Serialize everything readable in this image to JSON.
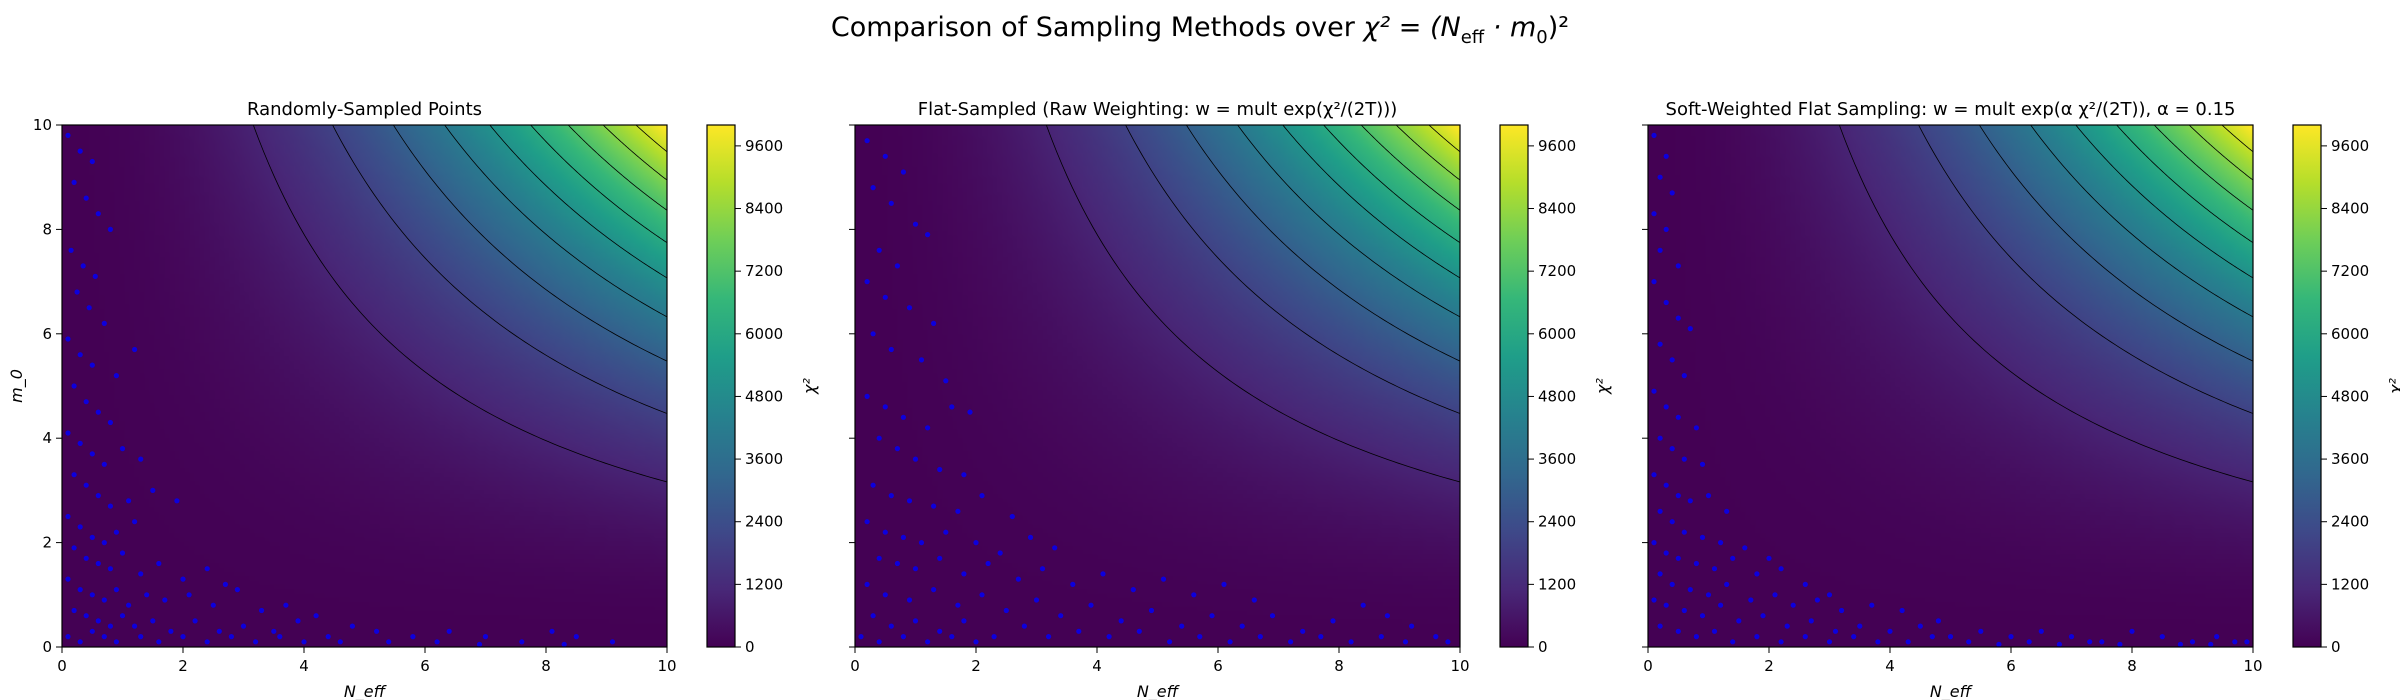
{
  "suptitle": {
    "pre": "Comparison of Sampling Methods over ",
    "formula": "χ² = (N",
    "sub": "eff",
    "post": " · m",
    "sub2": "0",
    "end": ")²"
  },
  "colorbar_stops": [
    "#440154",
    "#482878",
    "#3e4989",
    "#31688e",
    "#26828e",
    "#1f9e89",
    "#35b779",
    "#6ece58",
    "#b5de2b",
    "#fde725"
  ],
  "chart_data": [
    {
      "type": "scatter",
      "title": "Randomly-Sampled Points",
      "xlabel": "N_eff",
      "ylabel": "m_0",
      "colorbar_label": "χ²",
      "xlim": [
        0,
        10
      ],
      "ylim": [
        0,
        10
      ],
      "xticks": [
        "0",
        "2",
        "4",
        "6",
        "8",
        "10"
      ],
      "yticks": [
        "0",
        "2",
        "4",
        "6",
        "8",
        "10"
      ],
      "cbar_range": [
        0,
        10000
      ],
      "cbar_ticks": [
        "0",
        "1200",
        "2400",
        "3600",
        "4800",
        "6000",
        "7200",
        "8400",
        "9600"
      ],
      "contour_levels": [
        1000,
        2000,
        3000,
        4000,
        5000,
        6000,
        7000,
        8000,
        9000
      ],
      "point_color": "#0000ff",
      "points": [
        [
          0.1,
          9.8
        ],
        [
          0.3,
          9.5
        ],
        [
          0.5,
          9.3
        ],
        [
          0.2,
          8.9
        ],
        [
          0.4,
          8.6
        ],
        [
          0.6,
          8.3
        ],
        [
          0.8,
          8.0
        ],
        [
          0.15,
          7.6
        ],
        [
          0.35,
          7.3
        ],
        [
          0.55,
          7.1
        ],
        [
          0.25,
          6.8
        ],
        [
          0.45,
          6.5
        ],
        [
          0.7,
          6.2
        ],
        [
          0.1,
          5.9
        ],
        [
          0.3,
          5.6
        ],
        [
          0.5,
          5.4
        ],
        [
          0.9,
          5.2
        ],
        [
          1.2,
          5.7
        ],
        [
          0.2,
          5.0
        ],
        [
          0.4,
          4.7
        ],
        [
          0.6,
          4.5
        ],
        [
          0.8,
          4.3
        ],
        [
          0.1,
          4.1
        ],
        [
          0.3,
          3.9
        ],
        [
          0.5,
          3.7
        ],
        [
          0.7,
          3.5
        ],
        [
          1.0,
          3.8
        ],
        [
          1.3,
          3.6
        ],
        [
          0.2,
          3.3
        ],
        [
          0.4,
          3.1
        ],
        [
          0.6,
          2.9
        ],
        [
          0.8,
          2.7
        ],
        [
          1.1,
          2.8
        ],
        [
          1.5,
          3.0
        ],
        [
          0.1,
          2.5
        ],
        [
          0.3,
          2.3
        ],
        [
          0.5,
          2.1
        ],
        [
          0.7,
          2.0
        ],
        [
          0.9,
          2.2
        ],
        [
          1.2,
          2.4
        ],
        [
          1.9,
          2.8
        ],
        [
          0.2,
          1.9
        ],
        [
          0.4,
          1.7
        ],
        [
          0.6,
          1.6
        ],
        [
          0.8,
          1.5
        ],
        [
          1.0,
          1.8
        ],
        [
          1.3,
          1.4
        ],
        [
          1.6,
          1.6
        ],
        [
          2.0,
          1.3
        ],
        [
          2.4,
          1.5
        ],
        [
          2.7,
          1.2
        ],
        [
          0.1,
          1.3
        ],
        [
          0.3,
          1.1
        ],
        [
          0.5,
          1.0
        ],
        [
          0.7,
          0.9
        ],
        [
          0.9,
          1.1
        ],
        [
          1.1,
          0.8
        ],
        [
          1.4,
          1.0
        ],
        [
          1.7,
          0.9
        ],
        [
          2.1,
          1.0
        ],
        [
          2.5,
          0.8
        ],
        [
          2.9,
          1.1
        ],
        [
          3.3,
          0.7
        ],
        [
          3.7,
          0.8
        ],
        [
          4.2,
          0.6
        ],
        [
          0.2,
          0.7
        ],
        [
          0.4,
          0.6
        ],
        [
          0.6,
          0.5
        ],
        [
          0.8,
          0.4
        ],
        [
          1.0,
          0.6
        ],
        [
          1.2,
          0.4
        ],
        [
          1.5,
          0.5
        ],
        [
          1.8,
          0.3
        ],
        [
          2.2,
          0.5
        ],
        [
          2.6,
          0.3
        ],
        [
          3.0,
          0.4
        ],
        [
          3.5,
          0.3
        ],
        [
          3.9,
          0.5
        ],
        [
          4.4,
          0.2
        ],
        [
          4.8,
          0.4
        ],
        [
          5.2,
          0.3
        ],
        [
          5.8,
          0.2
        ],
        [
          6.4,
          0.3
        ],
        [
          7.0,
          0.2
        ],
        [
          7.6,
          0.1
        ],
        [
          8.1,
          0.3
        ],
        [
          8.5,
          0.2
        ],
        [
          9.1,
          0.1
        ],
        [
          0.1,
          0.2
        ],
        [
          0.3,
          0.1
        ],
        [
          0.5,
          0.3
        ],
        [
          0.7,
          0.2
        ],
        [
          0.9,
          0.1
        ],
        [
          1.3,
          0.2
        ],
        [
          1.6,
          0.1
        ],
        [
          2.0,
          0.2
        ],
        [
          2.4,
          0.1
        ],
        [
          2.8,
          0.2
        ],
        [
          3.2,
          0.1
        ],
        [
          3.6,
          0.2
        ],
        [
          4.0,
          0.1
        ],
        [
          4.6,
          0.1
        ],
        [
          5.4,
          0.1
        ],
        [
          6.2,
          0.1
        ],
        [
          6.9,
          0.05
        ],
        [
          8.3,
          0.05
        ]
      ]
    },
    {
      "type": "scatter",
      "title": "Flat-Sampled (Raw Weighting: w = mult exp(χ²/(2T)))",
      "xlabel": "N_eff",
      "ylabel": "",
      "colorbar_label": "χ²",
      "xlim": [
        0,
        10
      ],
      "ylim": [
        0,
        10
      ],
      "xticks": [
        "0",
        "2",
        "4",
        "6",
        "8",
        "10"
      ],
      "yticks": [
        "",
        "",
        "",
        "",
        "",
        ""
      ],
      "cbar_range": [
        0,
        10000
      ],
      "cbar_ticks": [
        "0",
        "1200",
        "2400",
        "3600",
        "4800",
        "6000",
        "7200",
        "8400",
        "9600"
      ],
      "contour_levels": [
        1000,
        2000,
        3000,
        4000,
        5000,
        6000,
        7000,
        8000,
        9000
      ],
      "point_color": "#0000ff",
      "points": [
        [
          0.2,
          9.7
        ],
        [
          0.5,
          9.4
        ],
        [
          0.8,
          9.1
        ],
        [
          0.3,
          8.8
        ],
        [
          0.6,
          8.5
        ],
        [
          1.0,
          8.1
        ],
        [
          1.2,
          7.9
        ],
        [
          0.4,
          7.6
        ],
        [
          0.7,
          7.3
        ],
        [
          0.2,
          7.0
        ],
        [
          0.5,
          6.7
        ],
        [
          0.9,
          6.5
        ],
        [
          1.3,
          6.2
        ],
        [
          0.3,
          6.0
        ],
        [
          0.6,
          5.7
        ],
        [
          1.1,
          5.5
        ],
        [
          1.5,
          5.1
        ],
        [
          0.2,
          4.8
        ],
        [
          0.5,
          4.6
        ],
        [
          0.8,
          4.4
        ],
        [
          1.2,
          4.2
        ],
        [
          1.6,
          4.6
        ],
        [
          1.9,
          4.5
        ],
        [
          0.4,
          4.0
        ],
        [
          0.7,
          3.8
        ],
        [
          1.0,
          3.6
        ],
        [
          1.4,
          3.4
        ],
        [
          1.8,
          3.3
        ],
        [
          0.3,
          3.1
        ],
        [
          0.6,
          2.9
        ],
        [
          0.9,
          2.8
        ],
        [
          1.3,
          2.7
        ],
        [
          1.7,
          2.6
        ],
        [
          2.1,
          2.9
        ],
        [
          2.6,
          2.5
        ],
        [
          0.2,
          2.4
        ],
        [
          0.5,
          2.2
        ],
        [
          0.8,
          2.1
        ],
        [
          1.1,
          2.0
        ],
        [
          1.5,
          2.2
        ],
        [
          2.0,
          2.0
        ],
        [
          2.4,
          1.8
        ],
        [
          2.9,
          2.1
        ],
        [
          3.3,
          1.9
        ],
        [
          0.4,
          1.7
        ],
        [
          0.7,
          1.6
        ],
        [
          1.0,
          1.5
        ],
        [
          1.4,
          1.7
        ],
        [
          1.8,
          1.4
        ],
        [
          2.2,
          1.6
        ],
        [
          2.7,
          1.3
        ],
        [
          3.1,
          1.5
        ],
        [
          3.6,
          1.2
        ],
        [
          4.1,
          1.4
        ],
        [
          4.6,
          1.1
        ],
        [
          5.1,
          1.3
        ],
        [
          5.6,
          1.0
        ],
        [
          6.1,
          1.2
        ],
        [
          6.6,
          0.9
        ],
        [
          0.2,
          1.2
        ],
        [
          0.5,
          1.0
        ],
        [
          0.9,
          0.9
        ],
        [
          1.3,
          1.1
        ],
        [
          1.7,
          0.8
        ],
        [
          2.1,
          1.0
        ],
        [
          2.5,
          0.7
        ],
        [
          3.0,
          0.9
        ],
        [
          3.4,
          0.6
        ],
        [
          3.9,
          0.8
        ],
        [
          4.4,
          0.5
        ],
        [
          4.9,
          0.7
        ],
        [
          5.4,
          0.4
        ],
        [
          5.9,
          0.6
        ],
        [
          6.4,
          0.4
        ],
        [
          6.9,
          0.6
        ],
        [
          7.4,
          0.3
        ],
        [
          7.9,
          0.5
        ],
        [
          8.4,
          0.8
        ],
        [
          8.8,
          0.6
        ],
        [
          9.2,
          0.4
        ],
        [
          0.3,
          0.6
        ],
        [
          0.6,
          0.4
        ],
        [
          1.0,
          0.5
        ],
        [
          1.4,
          0.3
        ],
        [
          1.8,
          0.5
        ],
        [
          2.3,
          0.2
        ],
        [
          2.8,
          0.4
        ],
        [
          3.2,
          0.2
        ],
        [
          3.7,
          0.3
        ],
        [
          4.2,
          0.2
        ],
        [
          4.7,
          0.3
        ],
        [
          5.2,
          0.1
        ],
        [
          5.7,
          0.2
        ],
        [
          6.2,
          0.1
        ],
        [
          6.7,
          0.2
        ],
        [
          7.2,
          0.1
        ],
        [
          7.7,
          0.2
        ],
        [
          8.2,
          0.1
        ],
        [
          8.7,
          0.2
        ],
        [
          9.1,
          0.1
        ],
        [
          9.6,
          0.2
        ],
        [
          9.8,
          0.1
        ],
        [
          0.1,
          0.2
        ],
        [
          0.4,
          0.1
        ],
        [
          0.8,
          0.2
        ],
        [
          1.2,
          0.1
        ],
        [
          1.6,
          0.2
        ],
        [
          2.0,
          0.1
        ]
      ]
    },
    {
      "type": "scatter",
      "title": "Soft-Weighted Flat Sampling: w = mult exp(α χ²/(2T)), α = 0.15",
      "xlabel": "N_eff",
      "ylabel": "",
      "colorbar_label": "χ²",
      "xlim": [
        0,
        10
      ],
      "ylim": [
        0,
        10
      ],
      "xticks": [
        "0",
        "2",
        "4",
        "6",
        "8",
        "10"
      ],
      "yticks": [
        "",
        "",
        "",
        "",
        "",
        ""
      ],
      "cbar_range": [
        0,
        10000
      ],
      "cbar_ticks": [
        "0",
        "1200",
        "2400",
        "3600",
        "4800",
        "6000",
        "7200",
        "8400",
        "9600"
      ],
      "contour_levels": [
        1000,
        2000,
        3000,
        4000,
        5000,
        6000,
        7000,
        8000,
        9000
      ],
      "point_color": "#0000ff",
      "points": [
        [
          0.1,
          9.8
        ],
        [
          0.3,
          9.4
        ],
        [
          0.2,
          9.0
        ],
        [
          0.4,
          8.7
        ],
        [
          0.1,
          8.3
        ],
        [
          0.3,
          8.0
        ],
        [
          0.2,
          7.6
        ],
        [
          0.5,
          7.3
        ],
        [
          0.1,
          7.0
        ],
        [
          0.3,
          6.6
        ],
        [
          0.5,
          6.3
        ],
        [
          0.7,
          6.1
        ],
        [
          0.2,
          5.8
        ],
        [
          0.4,
          5.5
        ],
        [
          0.6,
          5.2
        ],
        [
          0.1,
          4.9
        ],
        [
          0.3,
          4.6
        ],
        [
          0.5,
          4.4
        ],
        [
          0.8,
          4.2
        ],
        [
          0.2,
          4.0
        ],
        [
          0.4,
          3.8
        ],
        [
          0.6,
          3.6
        ],
        [
          0.9,
          3.5
        ],
        [
          0.1,
          3.3
        ],
        [
          0.3,
          3.1
        ],
        [
          0.5,
          2.9
        ],
        [
          0.7,
          2.8
        ],
        [
          1.0,
          2.9
        ],
        [
          1.3,
          2.6
        ],
        [
          0.2,
          2.6
        ],
        [
          0.4,
          2.4
        ],
        [
          0.6,
          2.2
        ],
        [
          0.9,
          2.1
        ],
        [
          1.2,
          2.0
        ],
        [
          1.6,
          1.9
        ],
        [
          2.0,
          1.7
        ],
        [
          0.1,
          2.0
        ],
        [
          0.3,
          1.8
        ],
        [
          0.5,
          1.7
        ],
        [
          0.8,
          1.6
        ],
        [
          1.1,
          1.5
        ],
        [
          1.4,
          1.7
        ],
        [
          1.8,
          1.4
        ],
        [
          2.2,
          1.5
        ],
        [
          2.6,
          1.2
        ],
        [
          3.0,
          1.0
        ],
        [
          0.2,
          1.4
        ],
        [
          0.4,
          1.2
        ],
        [
          0.7,
          1.1
        ],
        [
          1.0,
          1.0
        ],
        [
          1.3,
          1.2
        ],
        [
          1.7,
          0.9
        ],
        [
          2.1,
          1.0
        ],
        [
          2.4,
          0.8
        ],
        [
          2.8,
          0.9
        ],
        [
          3.2,
          0.7
        ],
        [
          3.7,
          0.8
        ],
        [
          4.2,
          0.7
        ],
        [
          4.8,
          0.5
        ],
        [
          0.1,
          0.9
        ],
        [
          0.3,
          0.8
        ],
        [
          0.6,
          0.7
        ],
        [
          0.9,
          0.6
        ],
        [
          1.2,
          0.8
        ],
        [
          1.5,
          0.5
        ],
        [
          1.9,
          0.6
        ],
        [
          2.3,
          0.4
        ],
        [
          2.7,
          0.5
        ],
        [
          3.1,
          0.3
        ],
        [
          3.5,
          0.4
        ],
        [
          4.0,
          0.3
        ],
        [
          4.5,
          0.4
        ],
        [
          5.0,
          0.2
        ],
        [
          5.5,
          0.3
        ],
        [
          6.0,
          0.2
        ],
        [
          6.5,
          0.3
        ],
        [
          7.0,
          0.2
        ],
        [
          7.5,
          0.1
        ],
        [
          8.0,
          0.3
        ],
        [
          8.5,
          0.2
        ],
        [
          9.0,
          0.1
        ],
        [
          9.4,
          0.2
        ],
        [
          9.7,
          0.1
        ],
        [
          0.2,
          0.4
        ],
        [
          0.5,
          0.3
        ],
        [
          0.8,
          0.2
        ],
        [
          1.1,
          0.3
        ],
        [
          1.4,
          0.1
        ],
        [
          1.8,
          0.2
        ],
        [
          2.2,
          0.1
        ],
        [
          2.6,
          0.2
        ],
        [
          3.0,
          0.1
        ],
        [
          3.4,
          0.2
        ],
        [
          3.8,
          0.1
        ],
        [
          4.3,
          0.1
        ],
        [
          4.7,
          0.2
        ],
        [
          5.3,
          0.1
        ],
        [
          5.8,
          0.05
        ],
        [
          6.3,
          0.1
        ],
        [
          6.8,
          0.05
        ],
        [
          7.3,
          0.1
        ],
        [
          7.8,
          0.05
        ],
        [
          8.8,
          0.05
        ],
        [
          9.3,
          0.05
        ],
        [
          9.9,
          0.1
        ]
      ]
    }
  ]
}
